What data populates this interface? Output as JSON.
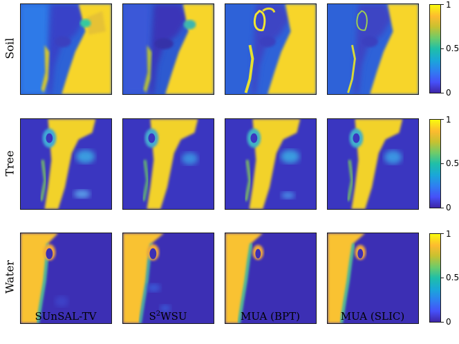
{
  "rows": [
    {
      "label": "Soil"
    },
    {
      "label": "Tree"
    },
    {
      "label": "Water"
    }
  ],
  "columns": [
    {
      "label": "SUnSAL-TV",
      "sup": "",
      "rest": ""
    },
    {
      "label": "S",
      "sup": "2",
      "rest": "WSU"
    },
    {
      "label": "MUA (BPT)",
      "sup": "",
      "rest": ""
    },
    {
      "label": "MUA (SLIC)",
      "sup": "",
      "rest": ""
    }
  ],
  "colorbar": {
    "ticks": [
      "1",
      "0.5",
      "0"
    ],
    "colors": {
      "low": "#3e26a8",
      "mid": "#1fbfa8",
      "high": "#f9fb0e"
    }
  }
}
